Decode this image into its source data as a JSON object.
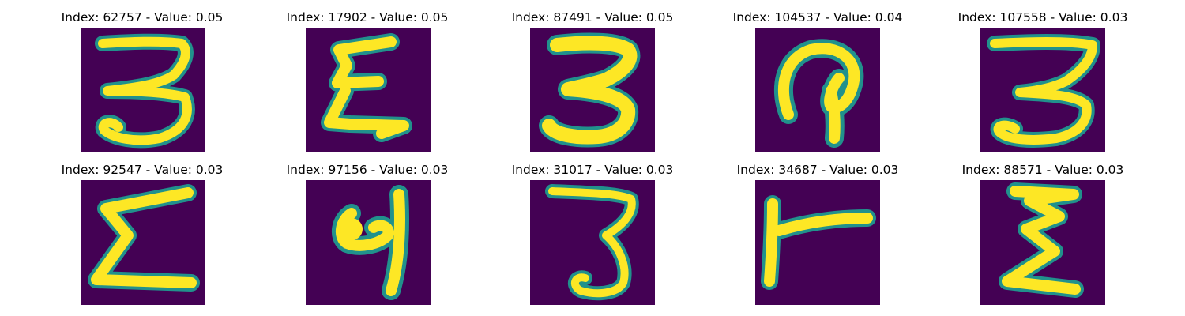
{
  "colors": {
    "background": "#440154",
    "mid": "#21918c",
    "mid2": "#3b528b",
    "stroke": "#fde725",
    "stroke2": "#b5de2b"
  },
  "panels": [
    {
      "title": "Index: 62757 - Value: 0.05",
      "glyph": "3 (digit, handwritten)"
    },
    {
      "title": "Index: 17902 - Value: 0.05",
      "glyph": "E/Σ (handwritten)"
    },
    {
      "title": "Index: 87491 - Value: 0.05",
      "glyph": "3 (digit, handwritten)"
    },
    {
      "title": "Index: 104537 - Value: 0.04",
      "glyph": "curved glyph (handwritten)"
    },
    {
      "title": "Index: 107558 - Value: 0.03",
      "glyph": "3 (digit, handwritten)"
    },
    {
      "title": "Index: 92547 - Value: 0.03",
      "glyph": "Σ (handwritten)"
    },
    {
      "title": "Index: 97156 - Value: 0.03",
      "glyph": "9-like glyph (handwritten)"
    },
    {
      "title": "Index: 31017 - Value: 0.03",
      "glyph": "3 (digit, handwritten)"
    },
    {
      "title": "Index: 34687 - Value: 0.03",
      "glyph": "T-like glyph (handwritten)"
    },
    {
      "title": "Index: 88571 - Value: 0.03",
      "glyph": "E/Σ (handwritten)"
    }
  ]
}
